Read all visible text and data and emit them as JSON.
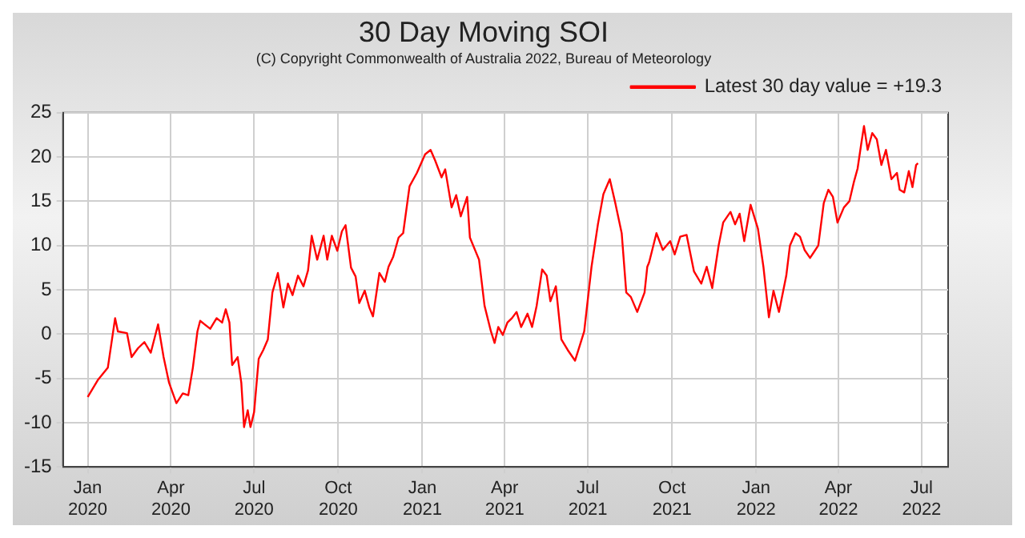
{
  "chart_data": {
    "type": "line",
    "title": "30 Day Moving SOI",
    "subtitle": "(C) Copyright Commonwealth of Australia 2022, Bureau of Meteorology",
    "x": [
      "2020-01-01",
      "2020-01-12",
      "2020-01-23",
      "2020-01-31",
      "2020-02-03",
      "2020-02-13",
      "2020-02-18",
      "2020-02-25",
      "2020-03-03",
      "2020-03-10",
      "2020-03-16",
      "2020-03-18",
      "2020-03-24",
      "2020-03-30",
      "2020-04-07",
      "2020-04-14",
      "2020-04-20",
      "2020-04-25",
      "2020-04-30",
      "2020-05-03",
      "2020-05-14",
      "2020-05-21",
      "2020-05-27",
      "2020-05-31",
      "2020-06-04",
      "2020-06-07",
      "2020-06-13",
      "2020-06-17",
      "2020-06-20",
      "2020-06-24",
      "2020-06-27",
      "2020-07-01",
      "2020-07-06",
      "2020-07-11",
      "2020-07-16",
      "2020-07-21",
      "2020-07-27",
      "2020-08-02",
      "2020-08-07",
      "2020-08-12",
      "2020-08-18",
      "2020-08-24",
      "2020-08-29",
      "2020-09-02",
      "2020-09-08",
      "2020-09-15",
      "2020-09-19",
      "2020-09-24",
      "2020-09-30",
      "2020-10-05",
      "2020-10-09",
      "2020-10-15",
      "2020-10-20",
      "2020-10-24",
      "2020-10-30",
      "2020-11-04",
      "2020-11-08",
      "2020-11-15",
      "2020-11-21",
      "2020-11-25",
      "2020-11-30",
      "2020-12-06",
      "2020-12-11",
      "2020-12-18",
      "2020-12-26",
      "2021-01-04",
      "2021-01-10",
      "2021-01-15",
      "2021-01-22",
      "2021-01-26",
      "2021-02-02",
      "2021-02-07",
      "2021-02-12",
      "2021-02-19",
      "2021-02-22",
      "2021-03-04",
      "2021-03-10",
      "2021-03-17",
      "2021-03-21",
      "2021-03-25",
      "2021-03-30",
      "2021-04-04",
      "2021-04-09",
      "2021-04-14",
      "2021-04-19",
      "2021-04-26",
      "2021-05-01",
      "2021-05-06",
      "2021-05-12",
      "2021-05-17",
      "2021-05-21",
      "2021-05-27",
      "2021-06-02",
      "2021-06-09",
      "2021-06-17",
      "2021-06-27",
      "2021-07-05",
      "2021-07-12",
      "2021-07-18",
      "2021-07-25",
      "2021-07-31",
      "2021-08-07",
      "2021-08-12",
      "2021-08-17",
      "2021-08-24",
      "2021-09-01",
      "2021-09-04",
      "2021-09-06",
      "2021-09-14",
      "2021-09-21",
      "2021-09-29",
      "2021-10-04",
      "2021-10-10",
      "2021-10-17",
      "2021-10-25",
      "2021-11-02",
      "2021-11-08",
      "2021-11-14",
      "2021-11-21",
      "2021-11-26",
      "2021-12-04",
      "2021-12-09",
      "2021-12-14",
      "2021-12-19",
      "2021-12-26",
      "2022-01-03",
      "2022-01-09",
      "2022-01-15",
      "2022-01-20",
      "2022-01-26",
      "2022-02-03",
      "2022-02-07",
      "2022-02-13",
      "2022-02-18",
      "2022-02-23",
      "2022-03-01",
      "2022-03-10",
      "2022-03-16",
      "2022-03-21",
      "2022-03-26",
      "2022-03-31",
      "2022-04-07",
      "2022-04-13",
      "2022-04-18",
      "2022-04-22",
      "2022-04-26",
      "2022-04-29",
      "2022-05-03",
      "2022-05-08",
      "2022-05-13",
      "2022-05-18",
      "2022-05-23",
      "2022-05-29",
      "2022-06-04",
      "2022-06-07",
      "2022-06-12",
      "2022-06-17",
      "2022-06-21",
      "2022-06-25",
      "2022-06-27"
    ],
    "series": [
      {
        "name": "Latest 30 day value = +19.3",
        "color": "#ff0000",
        "values": [
          -7.1,
          -5.2,
          -3.8,
          1.8,
          0.3,
          0.1,
          -2.6,
          -1.6,
          -0.9,
          -2.1,
          0.3,
          1.1,
          -2.6,
          -5.5,
          -7.8,
          -6.7,
          -6.9,
          -3.8,
          0.3,
          1.5,
          0.6,
          1.8,
          1.3,
          2.8,
          1.3,
          -3.5,
          -2.6,
          -5.5,
          -10.5,
          -8.6,
          -10.5,
          -8.8,
          -2.8,
          -1.8,
          -0.6,
          4.7,
          6.9,
          3.0,
          5.7,
          4.4,
          6.6,
          5.4,
          7.2,
          11.1,
          8.4,
          11.1,
          8.4,
          11.1,
          9.4,
          11.6,
          12.3,
          7.5,
          6.5,
          3.5,
          4.9,
          3.0,
          2.0,
          6.9,
          5.9,
          7.6,
          8.7,
          10.9,
          11.4,
          16.7,
          18.2,
          20.3,
          20.8,
          19.6,
          17.7,
          18.6,
          14.3,
          15.7,
          13.3,
          15.5,
          10.9,
          8.4,
          3.2,
          0.3,
          -1.0,
          0.8,
          -0.1,
          1.3,
          1.8,
          2.5,
          0.8,
          2.3,
          0.8,
          3.2,
          7.3,
          6.6,
          3.7,
          5.4,
          -0.6,
          -1.8,
          -3.0,
          0.3,
          7.6,
          12.4,
          15.8,
          17.5,
          14.8,
          11.4,
          4.7,
          4.2,
          2.5,
          4.7,
          7.6,
          8.1,
          11.4,
          9.5,
          10.5,
          9.0,
          11.0,
          11.2,
          7.1,
          5.7,
          7.6,
          5.2,
          10.0,
          12.6,
          13.8,
          12.4,
          13.6,
          10.5,
          14.6,
          11.9,
          7.6,
          1.9,
          4.9,
          2.5,
          6.6,
          10.0,
          11.4,
          11.0,
          9.5,
          8.6,
          10.0,
          14.8,
          16.3,
          15.5,
          12.6,
          14.3,
          15.0,
          17.2,
          18.7,
          21.5,
          23.5,
          20.8,
          22.7,
          22.0,
          19.1,
          20.8,
          17.5,
          18.2,
          16.3,
          16.0,
          18.4,
          16.6,
          19.1,
          19.3
        ]
      }
    ],
    "xlim": [
      "2019-12-05",
      "2022-07-30"
    ],
    "xticks": [
      {
        "value": "2020-01-01",
        "label": "Jan 2020"
      },
      {
        "value": "2020-04-01",
        "label": "Apr 2020"
      },
      {
        "value": "2020-07-01",
        "label": "Jul 2020"
      },
      {
        "value": "2020-10-01",
        "label": "Oct 2020"
      },
      {
        "value": "2021-01-01",
        "label": "Jan 2021"
      },
      {
        "value": "2021-04-01",
        "label": "Apr 2021"
      },
      {
        "value": "2021-07-01",
        "label": "Jul 2021"
      },
      {
        "value": "2021-10-01",
        "label": "Oct 2021"
      },
      {
        "value": "2022-01-01",
        "label": "Jan 2022"
      },
      {
        "value": "2022-04-01",
        "label": "Apr 2022"
      },
      {
        "value": "2022-07-01",
        "label": "Jul 2022"
      }
    ],
    "ylim": [
      -15,
      25
    ],
    "yticks": [
      -15,
      -10,
      -5,
      0,
      5,
      10,
      15,
      20,
      25
    ],
    "grid": true,
    "legend": "top right",
    "marker": "none",
    "line_style": "solid"
  }
}
